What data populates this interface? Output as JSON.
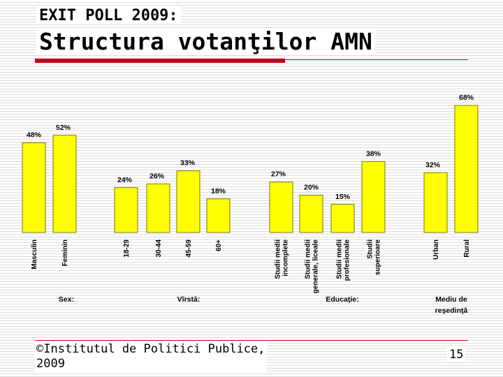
{
  "header": {
    "small_title": "EXIT POLL 2009:",
    "main_title": "Structura votanţilor AMN"
  },
  "footer": {
    "copyright_line1": "©Institutul de Politici Publice,",
    "copyright_line2": "2009",
    "page_number": "15"
  },
  "colors": {
    "bar_fill": "#ffff00",
    "bar_stroke": "#7a7a00",
    "accent_red": "#c0001a"
  },
  "chart_data": {
    "type": "bar",
    "title": "",
    "xlabel": "",
    "ylabel": "",
    "ylim": [
      0,
      68
    ],
    "grid": false,
    "legend": "none",
    "groups": [
      {
        "label": "Sex:",
        "categories": [
          "Masculin",
          "Feminin"
        ],
        "values": [
          48,
          52
        ]
      },
      {
        "label": "Vîrstă:",
        "categories": [
          "18-29",
          "30-44",
          "45-59",
          "60+"
        ],
        "values": [
          24,
          26,
          33,
          18
        ]
      },
      {
        "label": "Educaţie:",
        "categories": [
          "Studii medii incomplete",
          "Studii medii generale, liceale",
          "Studii medii profesionale",
          "Studii superioare"
        ],
        "values": [
          27,
          20,
          15,
          38
        ]
      },
      {
        "label": "Mediu de reşedinţă",
        "categories": [
          "Urban",
          "Rural"
        ],
        "values": [
          32,
          68
        ]
      }
    ]
  }
}
